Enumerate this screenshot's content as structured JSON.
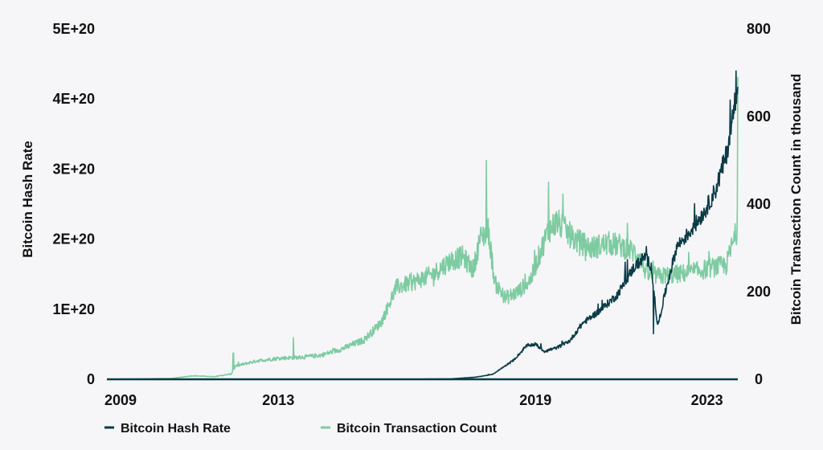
{
  "chart_data": {
    "type": "line",
    "title": "",
    "xlabel": "",
    "x_tick_labels": [
      "2009",
      "2013",
      "2019",
      "2023"
    ],
    "x_ticks": [
      2009,
      2013,
      2019,
      2023
    ],
    "x_range": [
      2009.0,
      2023.72
    ],
    "left_axis": {
      "label": "Bitcoin Hash Rate",
      "range": [
        0,
        5e+20
      ],
      "ticks": [
        0,
        1e+20,
        2e+20,
        3e+20,
        4e+20,
        5e+20
      ],
      "tick_labels": [
        "0",
        "1E+20",
        "2E+20",
        "3E+20",
        "4E+20",
        "5E+20"
      ]
    },
    "right_axis": {
      "label": "Bitcoin Transaction Count in thousand",
      "range": [
        0,
        800
      ],
      "ticks": [
        0,
        200,
        400,
        600,
        800
      ],
      "tick_labels": [
        "0",
        "200",
        "400",
        "600",
        "800"
      ]
    },
    "legend": {
      "placement": "bottom-left"
    },
    "series": [
      {
        "name": "Bitcoin Hash Rate",
        "axis": "left",
        "color": "#0b3b46",
        "noise": 0.05,
        "points": [
          [
            2009.0,
            0
          ],
          [
            2014.0,
            0
          ],
          [
            2016.0,
            1e+17
          ],
          [
            2017.0,
            5e+17
          ],
          [
            2017.6,
            3e+18
          ],
          [
            2018.0,
            7e+18
          ],
          [
            2018.5,
            2.8e+19
          ],
          [
            2018.8,
            4.8e+19
          ],
          [
            2019.0,
            5e+19
          ],
          [
            2019.2,
            4e+19
          ],
          [
            2019.5,
            4.5e+19
          ],
          [
            2019.8,
            5.5e+19
          ],
          [
            2020.1,
            8e+19
          ],
          [
            2020.5,
            9.8e+19
          ],
          [
            2020.9,
            1.2e+20
          ],
          [
            2021.3,
            1.6e+20
          ],
          [
            2021.55,
            1.75e+20
          ],
          [
            2021.7,
            1.62e+20
          ],
          [
            2021.85,
            7.5e+19
          ],
          [
            2022.05,
            1.3e+20
          ],
          [
            2022.3,
            1.9e+20
          ],
          [
            2022.6,
            2.1e+20
          ],
          [
            2022.95,
            2.4e+20
          ],
          [
            2023.2,
            2.7e+20
          ],
          [
            2023.45,
            3.2e+20
          ],
          [
            2023.62,
            3.8e+20
          ],
          [
            2023.7,
            4.2e+20
          ]
        ],
        "spikes": [
          [
            2021.75,
            6.5e+19
          ],
          [
            2023.68,
            4.4e+20
          ]
        ]
      },
      {
        "name": "Bitcoin Transaction Count",
        "axis": "right",
        "color": "#7ecba1",
        "noise": 0.09,
        "points": [
          [
            2009.0,
            0
          ],
          [
            2010.5,
            2
          ],
          [
            2011.0,
            8
          ],
          [
            2011.5,
            6
          ],
          [
            2011.9,
            12
          ],
          [
            2012.0,
            30
          ],
          [
            2012.5,
            42
          ],
          [
            2013.0,
            48
          ],
          [
            2013.5,
            50
          ],
          [
            2014.0,
            55
          ],
          [
            2014.5,
            70
          ],
          [
            2015.0,
            90
          ],
          [
            2015.4,
            130
          ],
          [
            2015.75,
            210
          ],
          [
            2016.1,
            220
          ],
          [
            2016.6,
            240
          ],
          [
            2017.0,
            270
          ],
          [
            2017.3,
            280
          ],
          [
            2017.55,
            250
          ],
          [
            2017.7,
            320
          ],
          [
            2017.9,
            340
          ],
          [
            2018.05,
            220
          ],
          [
            2018.3,
            185
          ],
          [
            2018.6,
            200
          ],
          [
            2018.9,
            230
          ],
          [
            2019.0,
            260
          ],
          [
            2019.3,
            340
          ],
          [
            2019.5,
            360
          ],
          [
            2019.9,
            320
          ],
          [
            2020.3,
            300
          ],
          [
            2020.7,
            310
          ],
          [
            2021.0,
            305
          ],
          [
            2021.4,
            285
          ],
          [
            2021.6,
            240
          ],
          [
            2021.9,
            235
          ],
          [
            2022.3,
            240
          ],
          [
            2022.7,
            245
          ],
          [
            2023.1,
            255
          ],
          [
            2023.45,
            260
          ],
          [
            2023.6,
            310
          ],
          [
            2023.7,
            340
          ]
        ],
        "spikes": [
          [
            2017.85,
            500
          ],
          [
            2019.3,
            450
          ],
          [
            2013.35,
            95
          ],
          [
            2011.95,
            60
          ],
          [
            2023.72,
            690
          ]
        ]
      }
    ]
  }
}
